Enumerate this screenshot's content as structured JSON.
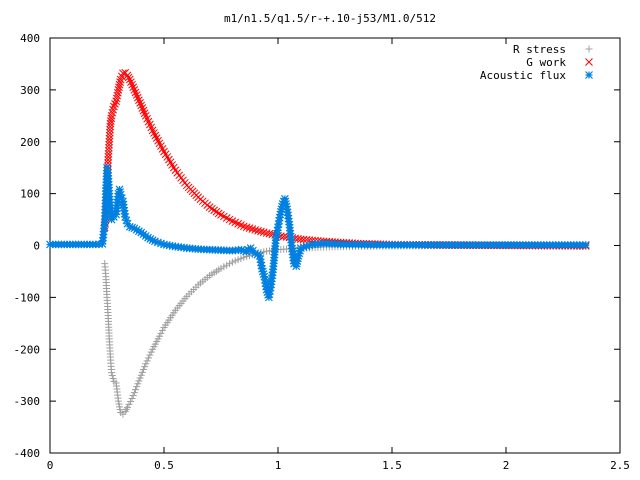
{
  "chart_data": {
    "type": "scatter",
    "title": "m1/n1.5/q1.5/r-+.10-j53/M1.0/512",
    "xlabel": "",
    "ylabel": "",
    "xlim": [
      0,
      2.5
    ],
    "ylim": [
      -400,
      400
    ],
    "xticks": [
      "0",
      "0.5",
      "1",
      "1.5",
      "2",
      "2.5"
    ],
    "yticks": [
      "-400",
      "-300",
      "-200",
      "-100",
      "0",
      "100",
      "200",
      "300",
      "400"
    ],
    "legend_position": "top-right",
    "grid": false,
    "series": [
      {
        "name": "R stress",
        "marker": "plus",
        "color": "#a0a0a0",
        "points": [
          [
            0.24,
            -35
          ],
          [
            0.245,
            -60
          ],
          [
            0.25,
            -100
          ],
          [
            0.255,
            -135
          ],
          [
            0.26,
            -180
          ],
          [
            0.265,
            -215
          ],
          [
            0.27,
            -245
          ],
          [
            0.28,
            -262
          ],
          [
            0.29,
            -265
          ],
          [
            0.3,
            -300
          ],
          [
            0.31,
            -322
          ],
          [
            0.32,
            -325
          ],
          [
            0.33,
            -320
          ],
          [
            0.34,
            -312
          ],
          [
            0.36,
            -295
          ],
          [
            0.38,
            -272
          ],
          [
            0.4,
            -250
          ],
          [
            0.42,
            -228
          ],
          [
            0.45,
            -200
          ],
          [
            0.48,
            -175
          ],
          [
            0.5,
            -158
          ],
          [
            0.55,
            -125
          ],
          [
            0.6,
            -98
          ],
          [
            0.65,
            -76
          ],
          [
            0.7,
            -58
          ],
          [
            0.75,
            -44
          ],
          [
            0.8,
            -32
          ],
          [
            0.85,
            -23
          ],
          [
            0.9,
            -16
          ],
          [
            0.95,
            -11
          ],
          [
            1.0,
            -8
          ],
          [
            1.1,
            -5
          ],
          [
            1.2,
            -3
          ],
          [
            1.3,
            -2
          ],
          [
            1.5,
            -1
          ],
          [
            1.8,
            0
          ],
          [
            2.1,
            0
          ],
          [
            2.35,
            0
          ]
        ]
      },
      {
        "name": "G work",
        "marker": "cross",
        "color": "#ff0000",
        "points": [
          [
            0.24,
            35
          ],
          [
            0.245,
            55
          ],
          [
            0.25,
            105
          ],
          [
            0.255,
            165
          ],
          [
            0.26,
            200
          ],
          [
            0.265,
            235
          ],
          [
            0.27,
            250
          ],
          [
            0.28,
            268
          ],
          [
            0.29,
            278
          ],
          [
            0.3,
            300
          ],
          [
            0.31,
            320
          ],
          [
            0.32,
            332
          ],
          [
            0.33,
            333
          ],
          [
            0.34,
            328
          ],
          [
            0.35,
            320
          ],
          [
            0.36,
            310
          ],
          [
            0.38,
            290
          ],
          [
            0.4,
            270
          ],
          [
            0.42,
            250
          ],
          [
            0.45,
            222
          ],
          [
            0.48,
            197
          ],
          [
            0.5,
            181
          ],
          [
            0.55,
            145
          ],
          [
            0.6,
            116
          ],
          [
            0.65,
            93
          ],
          [
            0.7,
            74
          ],
          [
            0.75,
            59
          ],
          [
            0.8,
            47
          ],
          [
            0.85,
            37
          ],
          [
            0.9,
            30
          ],
          [
            0.95,
            24
          ],
          [
            1.0,
            19
          ],
          [
            1.1,
            12
          ],
          [
            1.2,
            8
          ],
          [
            1.3,
            5
          ],
          [
            1.4,
            3
          ],
          [
            1.5,
            2
          ],
          [
            1.7,
            1
          ],
          [
            2.0,
            0
          ],
          [
            2.35,
            -1
          ]
        ]
      },
      {
        "name": "Acoustic flux",
        "marker": "star",
        "color": "#0080e0",
        "points": [
          [
            0,
            2
          ],
          [
            0.05,
            2
          ],
          [
            0.1,
            2
          ],
          [
            0.15,
            2
          ],
          [
            0.2,
            2
          ],
          [
            0.23,
            3
          ],
          [
            0.24,
            45
          ],
          [
            0.245,
            105
          ],
          [
            0.25,
            150
          ],
          [
            0.255,
            140
          ],
          [
            0.26,
            100
          ],
          [
            0.27,
            50
          ],
          [
            0.28,
            55
          ],
          [
            0.29,
            60
          ],
          [
            0.3,
            100
          ],
          [
            0.305,
            108
          ],
          [
            0.31,
            98
          ],
          [
            0.32,
            85
          ],
          [
            0.33,
            55
          ],
          [
            0.34,
            42
          ],
          [
            0.35,
            36
          ],
          [
            0.37,
            33
          ],
          [
            0.4,
            25
          ],
          [
            0.43,
            15
          ],
          [
            0.46,
            8
          ],
          [
            0.5,
            2
          ],
          [
            0.55,
            -2
          ],
          [
            0.6,
            -5
          ],
          [
            0.65,
            -7
          ],
          [
            0.7,
            -8
          ],
          [
            0.75,
            -9
          ],
          [
            0.8,
            -10
          ],
          [
            0.84,
            -8
          ],
          [
            0.86,
            -12
          ],
          [
            0.88,
            -5
          ],
          [
            0.9,
            -15
          ],
          [
            0.92,
            -20
          ],
          [
            0.93,
            -45
          ],
          [
            0.94,
            -60
          ],
          [
            0.95,
            -85
          ],
          [
            0.96,
            -100
          ],
          [
            0.97,
            -75
          ],
          [
            0.98,
            -40
          ],
          [
            0.99,
            10
          ],
          [
            1.0,
            35
          ],
          [
            1.01,
            60
          ],
          [
            1.02,
            80
          ],
          [
            1.03,
            90
          ],
          [
            1.04,
            70
          ],
          [
            1.05,
            40
          ],
          [
            1.06,
            0
          ],
          [
            1.07,
            -35
          ],
          [
            1.08,
            -40
          ],
          [
            1.09,
            -20
          ],
          [
            1.1,
            -5
          ],
          [
            1.15,
            2
          ],
          [
            1.2,
            4
          ],
          [
            1.3,
            2
          ],
          [
            1.5,
            1
          ],
          [
            1.8,
            1
          ],
          [
            2.1,
            1
          ],
          [
            2.35,
            1
          ]
        ]
      }
    ]
  }
}
